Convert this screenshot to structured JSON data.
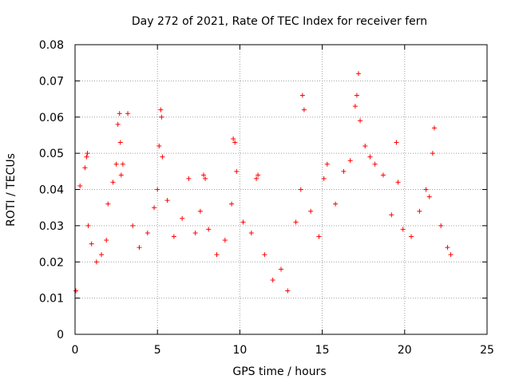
{
  "chart_data": {
    "type": "scatter",
    "title": "Day 272 of 2021, Rate Of TEC Index for receiver fern",
    "xlabel": "GPS time / hours",
    "ylabel": "ROTI / TECUs",
    "xlim": [
      0,
      25
    ],
    "ylim": [
      0,
      0.08
    ],
    "xticks": [
      "0",
      "5",
      "10",
      "15",
      "20",
      "25"
    ],
    "yticks": [
      "0",
      "0.01",
      "0.02",
      "0.03",
      "0.04",
      "0.05",
      "0.06",
      "0.07",
      "0.08"
    ],
    "grid": true,
    "marker": "+",
    "color": "#ff0000",
    "x_range_of_data": [
      0,
      22.85
    ],
    "series": [
      {
        "x": [
          0.05,
          0.3,
          0.6,
          0.7,
          0.75,
          0.8,
          1.0,
          1.3,
          1.6,
          1.9,
          2.0,
          2.3,
          2.5,
          2.6,
          2.7,
          2.75,
          2.8,
          2.9,
          3.2,
          3.5,
          3.9,
          4.4,
          4.8,
          5.0,
          5.1,
          5.2,
          5.25,
          5.3,
          5.6,
          6.0,
          6.5,
          6.9,
          7.3,
          7.6,
          7.8,
          7.9,
          8.1,
          8.6,
          9.1,
          9.5,
          9.6,
          9.7,
          9.8,
          10.2,
          10.7,
          11.0,
          11.1,
          11.5,
          12.0,
          12.5,
          12.9,
          13.4,
          13.7,
          13.8,
          13.9,
          14.3,
          14.8,
          15.1,
          15.3,
          15.8,
          16.3,
          16.7,
          17.0,
          17.1,
          17.2,
          17.3,
          17.6,
          17.9,
          18.2,
          18.7,
          19.2,
          19.5,
          19.6,
          19.9,
          20.4,
          20.9,
          21.3,
          21.5,
          21.7,
          21.8,
          22.2,
          22.6,
          22.8
        ],
        "y": [
          0.012,
          0.041,
          0.046,
          0.049,
          0.05,
          0.03,
          0.025,
          0.02,
          0.022,
          0.026,
          0.036,
          0.042,
          0.047,
          0.058,
          0.061,
          0.053,
          0.044,
          0.047,
          0.061,
          0.03,
          0.024,
          0.028,
          0.035,
          0.04,
          0.052,
          0.062,
          0.06,
          0.049,
          0.037,
          0.027,
          0.032,
          0.043,
          0.028,
          0.034,
          0.044,
          0.043,
          0.029,
          0.022,
          0.026,
          0.036,
          0.054,
          0.053,
          0.045,
          0.031,
          0.028,
          0.043,
          0.044,
          0.022,
          0.015,
          0.018,
          0.012,
          0.031,
          0.04,
          0.066,
          0.062,
          0.034,
          0.027,
          0.043,
          0.047,
          0.036,
          0.045,
          0.048,
          0.063,
          0.066,
          0.072,
          0.059,
          0.052,
          0.049,
          0.047,
          0.044,
          0.033,
          0.053,
          0.042,
          0.029,
          0.027,
          0.034,
          0.04,
          0.038,
          0.05,
          0.057,
          0.03,
          0.024,
          0.022
        ]
      }
    ]
  }
}
